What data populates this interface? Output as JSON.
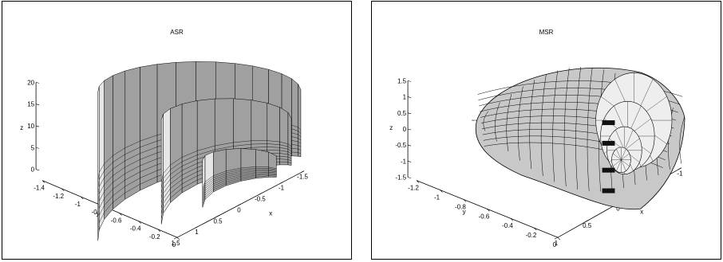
{
  "chart_data": [
    {
      "type": "surface3d",
      "title": "ASR",
      "xlabel": "x",
      "ylabel": "y",
      "zlabel": "z",
      "x_ticks": [
        "1.5",
        "1",
        "0.5",
        "0",
        "-0.5",
        "-1",
        "-1.5"
      ],
      "y_ticks": [
        "0",
        "-0.2",
        "-0.4",
        "-0.6",
        "-0.8",
        "-1",
        "-1.2",
        "-1.4"
      ],
      "z_ticks": [
        "0",
        "5",
        "10",
        "15",
        "20"
      ],
      "xlim": [
        -1.5,
        1.5
      ],
      "ylim": [
        -1.4,
        0
      ],
      "zlim": [
        0,
        20
      ],
      "grid": false,
      "colors": {
        "face": "#a0a0a0",
        "face_light": "#e6e6e6",
        "edge": "#000000"
      }
    },
    {
      "type": "surface3d",
      "title": "MSR",
      "xlabel": "x",
      "ylabel": "y",
      "zlabel": "z",
      "x_ticks": [
        "1",
        "0.5",
        "0",
        "-0.5",
        "-1"
      ],
      "y_ticks": [
        "0",
        "-0.2",
        "-0.4",
        "-0.6",
        "-0.8",
        "-1",
        "-1.2"
      ],
      "z_ticks": [
        "-1.5",
        "-1",
        "-0.5",
        "0",
        "0.5",
        "1",
        "1.5"
      ],
      "xlim": [
        -1,
        1
      ],
      "ylim": [
        -1.2,
        0
      ],
      "zlim": [
        -1.5,
        1.5
      ],
      "grid": false,
      "colors": {
        "face": "#c8c8c8",
        "face_light": "#eeeeee",
        "edge": "#000000"
      }
    }
  ]
}
